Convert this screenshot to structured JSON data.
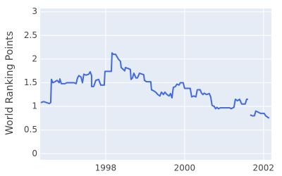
{
  "chart_data": {
    "type": "line",
    "y_label": "World Ranking Points",
    "x": [
      1996.357,
      1996.429,
      1996.5,
      1996.571,
      1996.607,
      1996.625,
      1996.661,
      1996.714,
      1996.768,
      1996.821,
      1996.839,
      1996.875,
      1996.964,
      1997.018,
      1997.196,
      1997.25,
      1997.286,
      1997.321,
      1997.375,
      1997.411,
      1997.446,
      1997.5,
      1997.571,
      1997.607,
      1997.643,
      1997.643,
      1997.696,
      1997.75,
      1997.821,
      1997.875,
      1997.964,
      1997.982,
      1998.143,
      1998.161,
      1998.196,
      1998.25,
      1998.321,
      1998.375,
      1998.393,
      1998.446,
      1998.482,
      1998.5,
      1998.571,
      1998.625,
      1998.643,
      1998.679,
      1998.714,
      1998.768,
      1998.804,
      1998.857,
      1998.929,
      1998.964,
      1998.982,
      1999.036,
      1999.143,
      1999.161,
      1999.214,
      1999.268,
      1999.321,
      1999.375,
      1999.411,
      1999.464,
      1999.5,
      1999.554,
      1999.607,
      1999.643,
      1999.679,
      1999.714,
      1999.768,
      1999.804,
      1999.857,
      1999.893,
      1999.964,
      2000.0,
      2000.143,
      2000.179,
      2000.232,
      2000.286,
      2000.321,
      2000.393,
      2000.429,
      2000.464,
      2000.5,
      2000.554,
      2000.625,
      2000.661,
      2000.696,
      2000.75,
      2000.786,
      2000.821,
      2000.857,
      2000.911,
      2001.036,
      2001.143,
      2001.179,
      2001.25,
      2001.286,
      2001.339,
      2001.393,
      2001.446,
      2001.536,
      2001.571,
      2001.607,
      2001.634,
      2001.661,
      2001.714,
      2001.768,
      2001.804,
      2001.857,
      2001.929,
      2002.018,
      2002.054,
      2002.107,
      2002.143
    ],
    "series": [
      {
        "color": "#4169e1",
        "values": [
          1.08,
          1.1,
          1.08,
          1.06,
          1.08,
          1.57,
          1.5,
          1.52,
          1.55,
          1.5,
          1.58,
          1.48,
          1.48,
          1.5,
          1.5,
          1.48,
          1.6,
          1.65,
          1.62,
          1.5,
          1.68,
          1.66,
          1.68,
          1.73,
          1.65,
          1.42,
          1.42,
          1.55,
          1.57,
          1.45,
          1.45,
          1.74,
          1.74,
          2.13,
          2.1,
          2.1,
          2.0,
          1.95,
          1.82,
          1.78,
          1.75,
          1.82,
          1.8,
          1.78,
          1.57,
          1.6,
          1.7,
          1.6,
          1.6,
          1.7,
          1.68,
          1.67,
          1.55,
          1.52,
          1.52,
          1.35,
          1.33,
          1.3,
          1.25,
          1.22,
          1.3,
          1.25,
          1.3,
          1.25,
          1.22,
          1.27,
          1.18,
          1.4,
          1.42,
          1.47,
          1.45,
          1.5,
          1.5,
          1.38,
          1.38,
          1.2,
          1.22,
          1.2,
          1.35,
          1.35,
          1.28,
          1.25,
          1.28,
          1.25,
          1.27,
          1.2,
          1.02,
          1.0,
          0.95,
          0.98,
          0.95,
          0.97,
          0.97,
          0.97,
          0.95,
          0.98,
          1.15,
          1.12,
          1.15,
          1.05,
          1.05,
          1.15,
          1.15,
          null,
          0.82,
          0.8,
          0.8,
          0.9,
          0.88,
          0.85,
          0.85,
          0.8,
          0.77,
          0.75
        ]
      }
    ],
    "xlim": [
      1996.34,
      2002.2
    ],
    "xticks": [
      1998,
      2000,
      2002
    ],
    "ylim": [
      -0.13,
      3.07
    ],
    "yticks": [
      0,
      0.5,
      1,
      1.5,
      2,
      2.5,
      3
    ],
    "grid": true
  }
}
